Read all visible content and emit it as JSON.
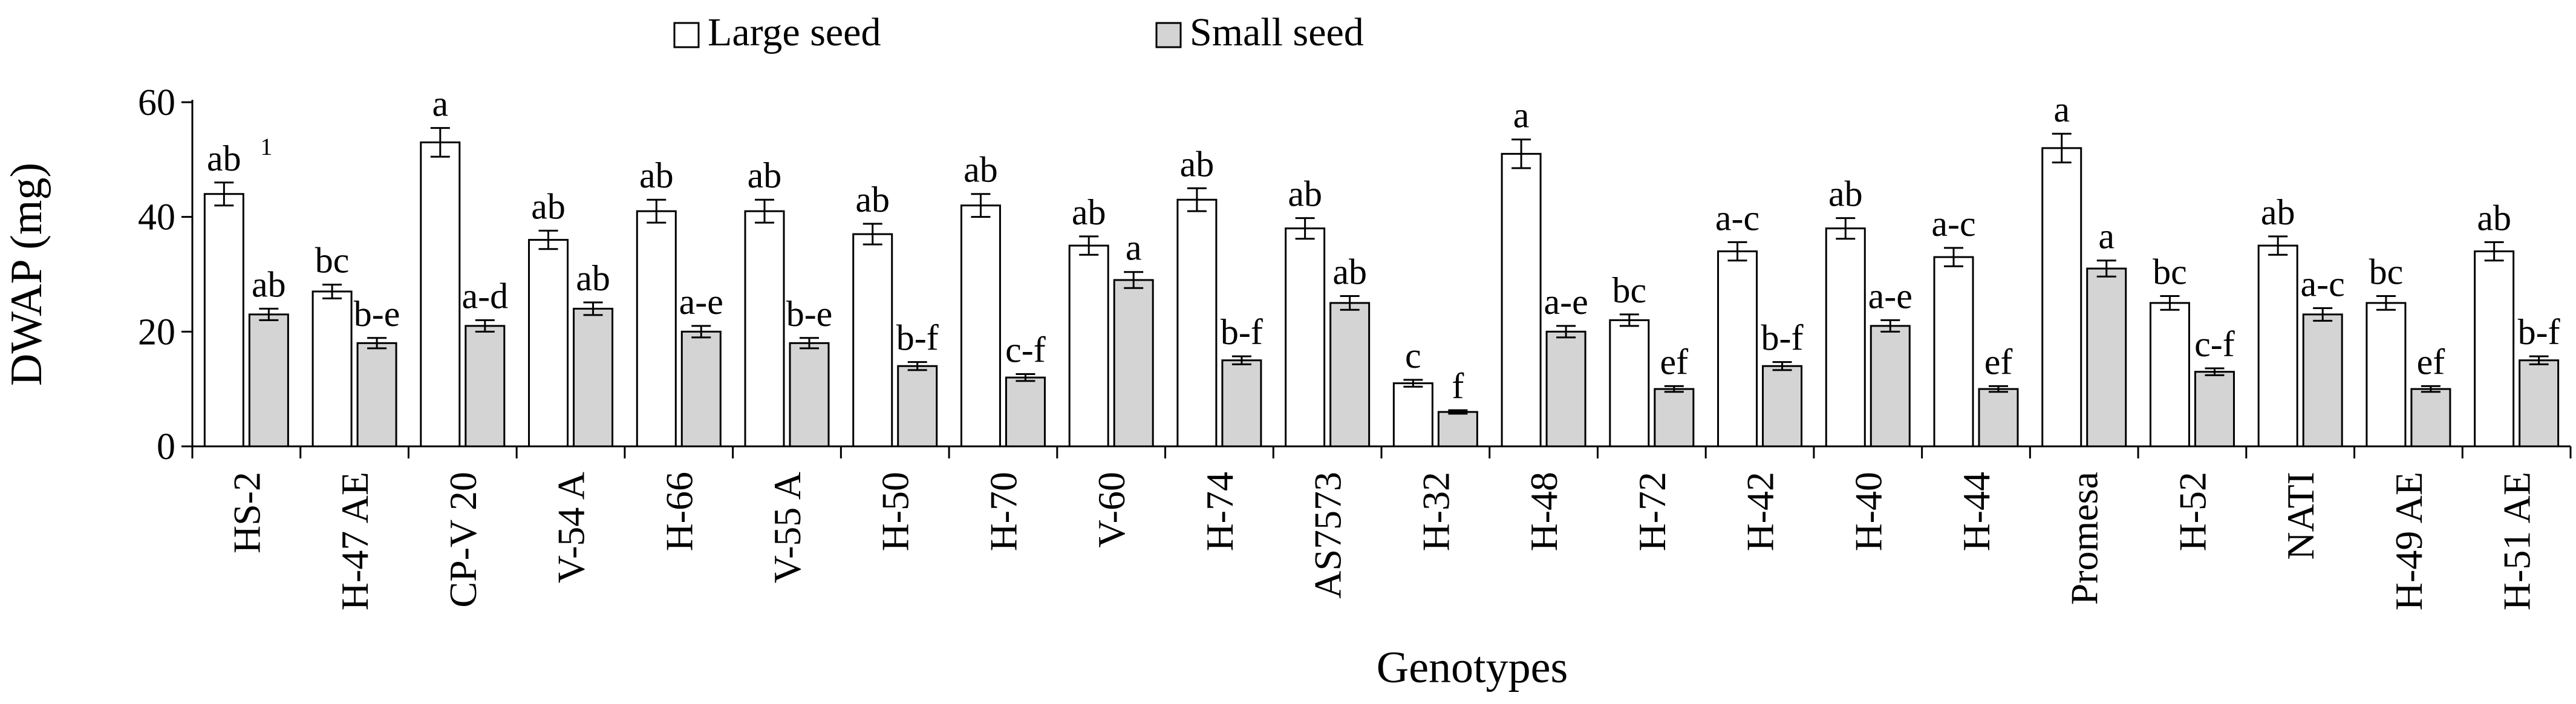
{
  "chart_data": {
    "type": "bar",
    "ylabel": "DWAP (mg)",
    "xlabel": "Genotypes",
    "ylim": [
      0,
      60
    ],
    "yticks": [
      0,
      20,
      40,
      60
    ],
    "legend_position": "top-center",
    "footnote_marker": "1",
    "categories": [
      "HS-2",
      "H-47 AE",
      "CP-V 20",
      "V-54 A",
      "H-66",
      "V-55 A",
      "H-50",
      "H-70",
      "V-60",
      "H-74",
      "AS7573",
      "H-32",
      "H-48",
      "H-72",
      "H-42",
      "H-40",
      "H-44",
      "Promesa",
      "H-52",
      "NATI",
      "H-49 AE",
      "H-51 AE"
    ],
    "series": [
      {
        "name": "Large seed",
        "color": "#ffffff",
        "values": [
          44,
          27,
          53,
          36,
          41,
          41,
          37,
          42,
          35,
          43,
          38,
          11,
          51,
          22,
          34,
          38,
          33,
          52,
          25,
          35,
          25,
          34
        ],
        "errors": [
          2.0,
          1.2,
          2.5,
          1.6,
          2.0,
          2.0,
          1.8,
          2.0,
          1.6,
          2.0,
          1.8,
          0.6,
          2.5,
          1.0,
          1.6,
          1.8,
          1.6,
          2.5,
          1.2,
          1.6,
          1.2,
          1.6
        ],
        "labels": [
          "ab",
          "bc",
          "a",
          "ab",
          "ab",
          "ab",
          "ab",
          "ab",
          "ab",
          "ab",
          "ab",
          "c",
          "a",
          "bc",
          "a-c",
          "ab",
          "a-c",
          "a",
          "bc",
          "ab",
          "bc",
          "ab"
        ]
      },
      {
        "name": "Small seed",
        "color": "#d4d4d4",
        "values": [
          23,
          18,
          21,
          24,
          20,
          18,
          14,
          12,
          29,
          15,
          25,
          6,
          20,
          10,
          14,
          21,
          10,
          31,
          13,
          23,
          10,
          15
        ],
        "errors": [
          1.0,
          0.9,
          1.0,
          1.1,
          1.0,
          0.9,
          0.7,
          0.6,
          1.4,
          0.7,
          1.2,
          0.3,
          1.0,
          0.5,
          0.7,
          1.0,
          0.5,
          1.4,
          0.6,
          1.1,
          0.5,
          0.7
        ],
        "labels": [
          "ab",
          "b-e",
          "a-d",
          "ab",
          "a-e",
          "b-e",
          "b-f",
          "c-f",
          "a",
          "b-f",
          "ab",
          "f",
          "a-e",
          "ef",
          "b-f",
          "a-e",
          "ef",
          "a",
          "c-f",
          "a-c",
          "ef",
          "b-f"
        ]
      }
    ]
  }
}
